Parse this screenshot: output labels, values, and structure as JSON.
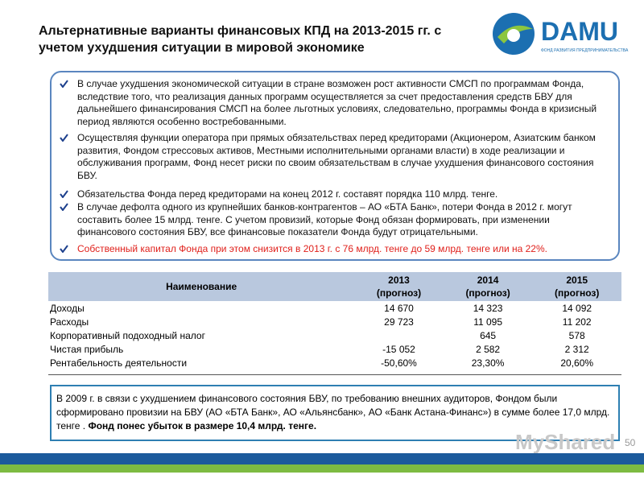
{
  "header": {
    "title": "Альтернативные варианты финансовых КПД на 2013-2015 гг. с учетом ухудшения  ситуации в мировой экономике",
    "logo": "DAMU",
    "logo_subtitle": "ФОНД РАЗВИТИЯ ПРЕДПРИНИМАТЕЛЬСТВА"
  },
  "bullets": [
    "В случае ухудшения экономической ситуации в стране возможен рост активности СМСП по программам Фонда, вследствие того, что реализация данных программ осуществляется за счет предоставления средств БВУ для дальнейшего финансирования СМСП на более льготных условиях, следовательно, программы Фонда в кризисный период являются особенно востребованными.",
    "Осуществляя функции оператора при прямых обязательствах перед кредиторами (Акционером, Азиатским банком развития, Фондом стрессовых активов, Местными исполнительными органами власти) в ходе реализации и обслуживания программ, Фонд несет риски по своим обязательствам в случае ухудшения финансового состояния БВУ.",
    "Обязательства Фонда перед кредиторами на конец 2012 г. составят  порядка 110 млрд. тенге.",
    "В случае дефолта одного из крупнейших банков-контрагентов – АО «БТА Банк», потери Фонда в 2012 г. могут составить более 15 млрд. тенге. С учетом провизий, которые Фонд обязан формировать, при изменении финансового состояния БВУ, все финансовые показатели Фонда будут отрицательными.",
    "Собственный капитал Фонда при этом снизится в 2013 г. с 76 млрд. тенге до 59 млрд. тенге или  на 22%."
  ],
  "table": {
    "header": [
      "Наименование",
      "2013\n(прогноз)",
      "2014\n(прогноз)",
      "2015\n(прогноз)"
    ],
    "rows": [
      [
        "Доходы",
        "14 670",
        "14 323",
        "14 092"
      ],
      [
        "Расходы",
        "29 723",
        "11 095",
        "11 202"
      ],
      [
        "Корпоративный подоходный налог",
        null,
        "645",
        "578"
      ],
      [
        "Чистая прибыль",
        "-15 052",
        "2 582",
        "2 312"
      ],
      [
        "Рентабельность деятельности",
        "-50,60%",
        "23,30%",
        "20,60%"
      ]
    ]
  },
  "note": {
    "text": "В 2009 г. в связи с ухудшением финансового состояния БВУ, по требованию внешних аудиторов, Фондом были сформировано провизии на БВУ (АО «БТА Банк», АО «Альянсбанк», АО «Банк Астана-Финанс») в сумме более 17,0 млрд. тенге . ",
    "bold": "Фонд понес убыток в размере 10,4 млрд. тенге."
  },
  "footer": {
    "page": "50",
    "watermark": "MyShared"
  }
}
